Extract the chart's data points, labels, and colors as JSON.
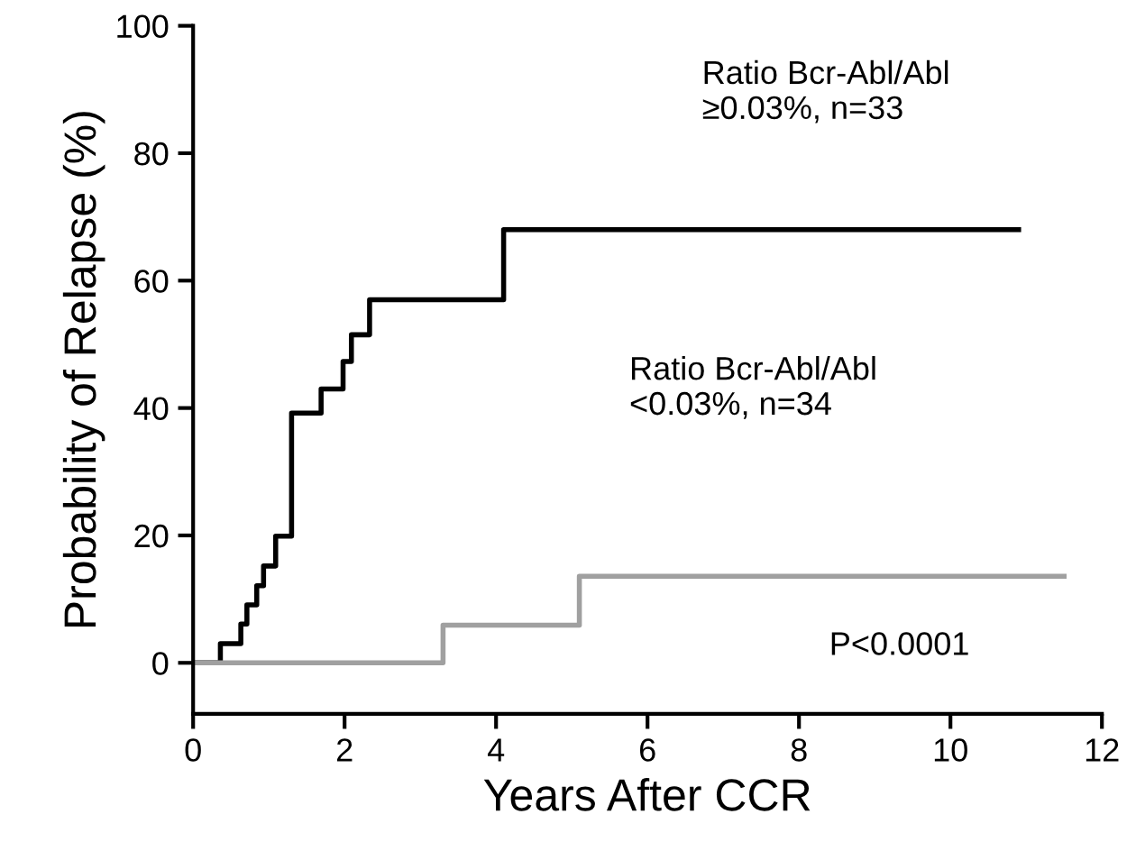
{
  "chart_data": {
    "type": "step",
    "xlabel": "Years After CCR",
    "ylabel": "Probability of Relapse (%)",
    "xlim": [
      0,
      12
    ],
    "ylim": [
      -8,
      100
    ],
    "xticks": [
      0,
      2,
      4,
      6,
      8,
      10,
      12
    ],
    "yticks": [
      0,
      20,
      40,
      60,
      80,
      100
    ],
    "grid": false,
    "legend": false,
    "line_style": "solid",
    "marker": "none",
    "series": [
      {
        "color": "#000000",
        "x": [
          0,
          0.36,
          0.63,
          0.71,
          0.84,
          0.93,
          1.09,
          1.3,
          1.69,
          1.98,
          2.09,
          2.33,
          4.1,
          10.9
        ],
        "values": [
          0,
          3,
          6.1,
          9.1,
          12.1,
          15.2,
          19.9,
          39.2,
          43,
          47.3,
          51.5,
          57,
          68,
          68
        ]
      },
      {
        "color": "#a0a0a0",
        "x": [
          0,
          3.3,
          5.1,
          11.5
        ],
        "values": [
          0,
          5.9,
          13.6,
          13.6
        ]
      }
    ],
    "annotations": [
      "Ratio Bcr-Abl/Abl\n≥0.03%, n=33",
      "Ratio Bcr-Abl/Abl\n<0.03%, n=34",
      "P<0.0001"
    ]
  }
}
